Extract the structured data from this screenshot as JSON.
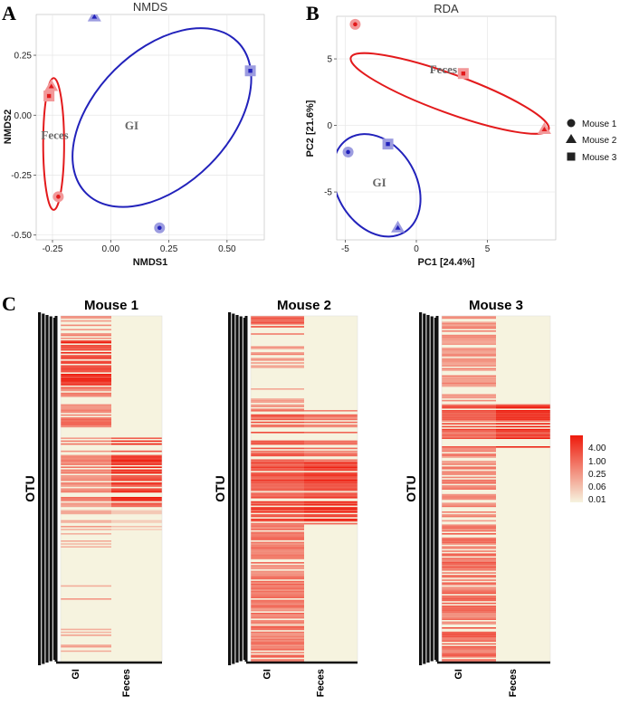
{
  "panel_labels": {
    "a": "A",
    "b": "B",
    "c": "C"
  },
  "chart_data": [
    {
      "id": "nmds",
      "type": "scatter",
      "title": "NMDS",
      "xlabel": "NMDS1",
      "ylabel": "NMDS2",
      "xlim": [
        -0.32,
        0.66
      ],
      "ylim": [
        -0.52,
        0.42
      ],
      "xticks": [
        {
          "v": -0.25,
          "label": "-0.25"
        },
        {
          "v": 0,
          "label": "0.00"
        },
        {
          "v": 0.25,
          "label": "0.25"
        },
        {
          "v": 0.5,
          "label": "0.50"
        }
      ],
      "yticks": [
        {
          "v": -0.5,
          "label": "-0.50"
        },
        {
          "v": -0.25,
          "label": "-0.25"
        },
        {
          "v": 0,
          "label": "0.00"
        },
        {
          "v": 0.25,
          "label": "0.25"
        }
      ],
      "groups": [
        {
          "name": "Feces",
          "color": "#e31a1c",
          "cx": -0.245,
          "cy": -0.12,
          "rx": 0.045,
          "ry": 0.275,
          "angle": 0,
          "label_x": -0.24,
          "label_y": -0.1
        },
        {
          "name": "GI",
          "color": "#2222bb",
          "cx": 0.22,
          "cy": -0.01,
          "rx": 0.46,
          "ry": 0.28,
          "angle": -45,
          "label_x": 0.09,
          "label_y": -0.06
        }
      ],
      "points": [
        {
          "x": -0.265,
          "y": 0.08,
          "shape": "square",
          "mouse": "Mouse 3",
          "color": "#e31a1c"
        },
        {
          "x": -0.255,
          "y": 0.12,
          "shape": "triangle",
          "mouse": "Mouse 2",
          "color": "#e31a1c"
        },
        {
          "x": -0.225,
          "y": -0.34,
          "shape": "circle",
          "mouse": "Mouse 1",
          "color": "#e31a1c"
        },
        {
          "x": -0.07,
          "y": 0.41,
          "shape": "triangle",
          "mouse": "Mouse 2",
          "color": "#2222bb"
        },
        {
          "x": 0.21,
          "y": -0.47,
          "shape": "circle",
          "mouse": "Mouse 1",
          "color": "#2222bb"
        },
        {
          "x": 0.6,
          "y": 0.185,
          "shape": "square",
          "mouse": "Mouse 3",
          "color": "#2222bb"
        }
      ]
    },
    {
      "id": "rda",
      "type": "scatter",
      "title": "RDA",
      "xlabel": "PC1   [24.4%]",
      "ylabel": "PC2   [21.6%]",
      "xlim": [
        -5.6,
        9.8
      ],
      "ylim": [
        -8.6,
        8.2
      ],
      "xticks": [
        {
          "v": -5,
          "label": "-5"
        },
        {
          "v": 0,
          "label": "0"
        },
        {
          "v": 5,
          "label": "5"
        }
      ],
      "yticks": [
        {
          "v": -5,
          "label": "-5"
        },
        {
          "v": 0,
          "label": "0"
        },
        {
          "v": 5,
          "label": "5"
        }
      ],
      "groups": [
        {
          "name": "Feces",
          "color": "#e31a1c",
          "cx": 2.35,
          "cy": 2.4,
          "rx": 7.4,
          "ry": 1.45,
          "angle": 20,
          "label_x": 1.9,
          "label_y": 3.9
        },
        {
          "name": "GI",
          "color": "#2222bb",
          "cx": -2.8,
          "cy": -4.5,
          "rx": 2.8,
          "ry": 4.1,
          "angle": -30,
          "label_x": -2.6,
          "label_y": -4.6
        }
      ],
      "points": [
        {
          "x": -4.3,
          "y": 7.6,
          "shape": "circle",
          "mouse": "Mouse 1",
          "color": "#e31a1c"
        },
        {
          "x": 3.3,
          "y": 3.9,
          "shape": "square",
          "mouse": "Mouse 3",
          "color": "#e31a1c"
        },
        {
          "x": 9.0,
          "y": -0.3,
          "shape": "triangle",
          "mouse": "Mouse 2",
          "color": "#e31a1c"
        },
        {
          "x": -4.8,
          "y": -2.0,
          "shape": "circle",
          "mouse": "Mouse 1",
          "color": "#2222bb"
        },
        {
          "x": -2.0,
          "y": -1.4,
          "shape": "square",
          "mouse": "Mouse 3",
          "color": "#2222bb"
        },
        {
          "x": -1.3,
          "y": -7.7,
          "shape": "triangle",
          "mouse": "Mouse 2",
          "color": "#2222bb"
        }
      ],
      "legend": [
        {
          "label": "Mouse 1",
          "shape": "circle"
        },
        {
          "label": "Mouse 2",
          "shape": "triangle"
        },
        {
          "label": "Mouse 3",
          "shape": "square"
        }
      ]
    },
    {
      "id": "heatmaps",
      "type": "heatmap",
      "ylabel": "OTU",
      "columns": [
        "GI",
        "Feces"
      ],
      "colorbar": {
        "ticks": [
          "4.00",
          "1.00",
          "0.25",
          "0.06",
          "0.01"
        ],
        "low_color": "#f6f3df",
        "high_color": "#ee1a0c"
      },
      "panels": [
        {
          "title": "Mouse 1",
          "blocks": [
            {
              "start": 0.0,
              "end": 0.07,
              "gi": 0.45,
              "feces": 0.0,
              "density": 0.6
            },
            {
              "start": 0.07,
              "end": 0.2,
              "gi": 0.85,
              "feces": 0.0,
              "density": 0.85
            },
            {
              "start": 0.2,
              "end": 0.32,
              "gi": 0.55,
              "feces": 0.0,
              "density": 0.8
            },
            {
              "start": 0.32,
              "end": 0.35,
              "gi": 0.0,
              "feces": 0.0,
              "density": 0.0
            },
            {
              "start": 0.35,
              "end": 0.55,
              "gi": 0.5,
              "feces": 0.85,
              "density": 0.7
            },
            {
              "start": 0.55,
              "end": 0.62,
              "gi": 0.35,
              "feces": 0.2,
              "density": 0.4
            },
            {
              "start": 0.62,
              "end": 1.0,
              "gi": 0.35,
              "feces": 0.0,
              "density": 0.13
            }
          ]
        },
        {
          "title": "Mouse 2",
          "blocks": [
            {
              "start": 0.0,
              "end": 0.03,
              "gi": 0.7,
              "feces": 0.0,
              "density": 0.9
            },
            {
              "start": 0.03,
              "end": 0.27,
              "gi": 0.45,
              "feces": 0.0,
              "density": 0.35
            },
            {
              "start": 0.27,
              "end": 0.42,
              "gi": 0.65,
              "feces": 0.55,
              "density": 0.65
            },
            {
              "start": 0.42,
              "end": 0.6,
              "gi": 0.75,
              "feces": 0.85,
              "density": 0.75
            },
            {
              "start": 0.6,
              "end": 1.0,
              "gi": 0.55,
              "feces": 0.0,
              "density": 0.8
            }
          ]
        },
        {
          "title": "Mouse 3",
          "blocks": [
            {
              "start": 0.0,
              "end": 0.25,
              "gi": 0.45,
              "feces": 0.0,
              "density": 0.65
            },
            {
              "start": 0.25,
              "end": 0.38,
              "gi": 0.7,
              "feces": 0.9,
              "density": 0.7
            },
            {
              "start": 0.38,
              "end": 0.6,
              "gi": 0.5,
              "feces": 0.0,
              "density": 0.6
            },
            {
              "start": 0.6,
              "end": 1.0,
              "gi": 0.6,
              "feces": 0.0,
              "density": 0.8
            }
          ]
        }
      ]
    }
  ]
}
